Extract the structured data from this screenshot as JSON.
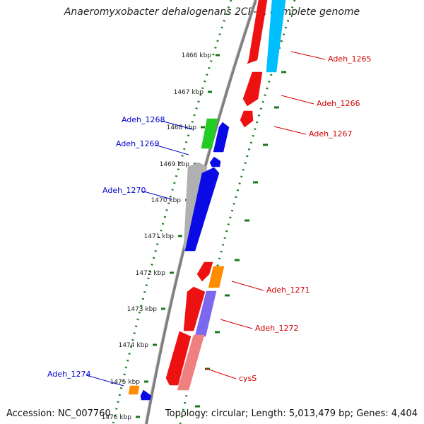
{
  "title": "Anaeromyxobacter dehalogenans 2CP-C, complete genome",
  "footer": {
    "accession": "Accession: NC_007760",
    "summary": "Topology: circular; Length: 5,013,479 bp; Genes: 4,404"
  },
  "scale": {
    "labels": [
      "1466 kbp",
      "1467 kbp",
      "1468 kbp",
      "1469 kbp",
      "1470 kbp",
      "1471 kbp",
      "1472 kbp",
      "1473 kbp",
      "1474 kbp",
      "1475 kbp",
      "1476 kbp"
    ]
  },
  "colors": {
    "backbone": "#7f7f7f",
    "red": "#ee1111",
    "pink": "#f08080",
    "cyan": "#00bfff",
    "green": "#22cc22",
    "blue": "#0a0ae6",
    "gray": "#b0b0b0",
    "orange": "#ff8c00",
    "violet": "#7b68ee",
    "dots": "#1a7a1a",
    "label_forward": "#d40000",
    "label_reverse": "#0000cc"
  },
  "features": [
    {
      "id": "f1",
      "color_key": "red",
      "strand": "forward",
      "lane": 1
    },
    {
      "id": "f2",
      "color_key": "cyan",
      "strand": "forward",
      "lane": 2
    },
    {
      "id": "f3",
      "color_key": "red",
      "strand": "forward",
      "lane": 1
    },
    {
      "id": "f4",
      "color_key": "red",
      "strand": "forward",
      "lane": 1
    },
    {
      "id": "f5",
      "color_key": "green",
      "strand": "reverse",
      "lane": 2
    },
    {
      "id": "f6",
      "color_key": "blue",
      "strand": "reverse",
      "lane": 1
    },
    {
      "id": "f7",
      "color_key": "blue",
      "strand": "reverse",
      "lane": 1
    },
    {
      "id": "f8",
      "color_key": "gray",
      "strand": "reverse",
      "lane": 2
    },
    {
      "id": "f9",
      "color_key": "blue",
      "strand": "reverse",
      "lane": 1
    },
    {
      "id": "f10",
      "color_key": "red",
      "strand": "forward",
      "lane": 1
    },
    {
      "id": "f11",
      "color_key": "orange",
      "strand": "forward",
      "lane": 2
    },
    {
      "id": "f12",
      "color_key": "red",
      "strand": "forward",
      "lane": 1
    },
    {
      "id": "f13",
      "color_key": "violet",
      "strand": "forward",
      "lane": 2
    },
    {
      "id": "f14",
      "color_key": "red",
      "strand": "forward",
      "lane": 1
    },
    {
      "id": "f15",
      "color_key": "pink",
      "strand": "forward",
      "lane": 2
    },
    {
      "id": "f16",
      "color_key": "orange",
      "strand": "reverse",
      "lane": 2
    },
    {
      "id": "f17",
      "color_key": "blue",
      "strand": "reverse",
      "lane": 1
    }
  ],
  "labels": [
    {
      "id": "lab1",
      "text": "Adeh_1265",
      "side": "right"
    },
    {
      "id": "lab2",
      "text": "Adeh_1266",
      "side": "right"
    },
    {
      "id": "lab3",
      "text": "Adeh_1267",
      "side": "right"
    },
    {
      "id": "lab4",
      "text": "Adeh_1268",
      "side": "left"
    },
    {
      "id": "lab5",
      "text": "Adeh_1269",
      "side": "left"
    },
    {
      "id": "lab6",
      "text": "Adeh_1270",
      "side": "left"
    },
    {
      "id": "lab7",
      "text": "Adeh_1271",
      "side": "right"
    },
    {
      "id": "lab8",
      "text": "Adeh_1272",
      "side": "right"
    },
    {
      "id": "lab9",
      "text": "cysS",
      "side": "right"
    },
    {
      "id": "lab10",
      "text": "Adeh_1274",
      "side": "left"
    }
  ]
}
